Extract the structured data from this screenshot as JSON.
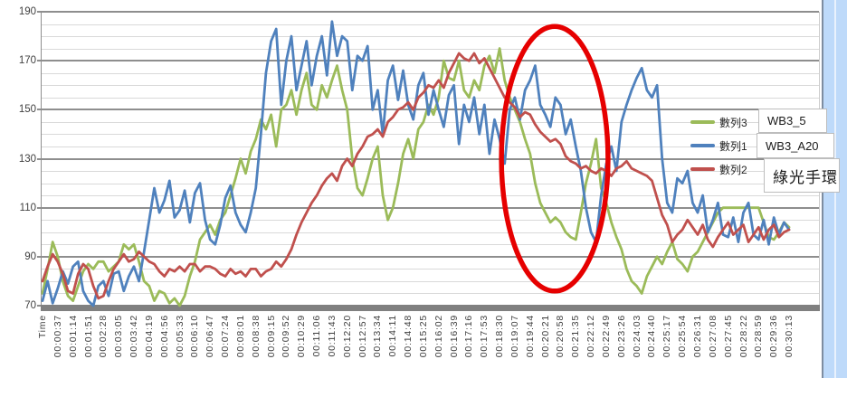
{
  "chart_data": {
    "type": "line",
    "x_axis_first_label": "Time",
    "x_labels": [
      "Time",
      "00:00:37",
      "00:01:14",
      "00:01:51",
      "00:02:28",
      "00:03:05",
      "00:03:42",
      "00:04:19",
      "00:04:56",
      "00:05:33",
      "00:06:10",
      "00:06:47",
      "00:07:24",
      "00:08:01",
      "00:08:38",
      "00:09:15",
      "00:09:52",
      "00:10:29",
      "00:11:06",
      "00:11:43",
      "00:12:20",
      "00:12:57",
      "00:13:34",
      "00:14:11",
      "00:14:48",
      "00:15:25",
      "00:16:02",
      "00:16:39",
      "00:17:16",
      "00:17:53",
      "00:18:30",
      "00:19:07",
      "00:19:44",
      "00:20:21",
      "00:20:58",
      "00:21:35",
      "00:22:12",
      "00:22:49",
      "00:23:26",
      "00:24:03",
      "00:24:40",
      "00:25:17",
      "00:25:54",
      "00:26:31",
      "00:27:08",
      "00:27:45",
      "00:28:22",
      "00:28:59",
      "00:29:36",
      "00:30:13"
    ],
    "ylim": [
      70,
      190
    ],
    "y_ticks": [
      70,
      90,
      110,
      130,
      150,
      170,
      190
    ],
    "y_minor_step": 5,
    "grid": "horizontal",
    "legend_position": "right-middle",
    "series": [
      {
        "name": "數列3",
        "device_label": "WB3_5",
        "color": "#9BBB59",
        "values": [
          75,
          85,
          96,
          90,
          80,
          74,
          72,
          78,
          84,
          87,
          85,
          88,
          88,
          84,
          86,
          88,
          95,
          93,
          95,
          88,
          80,
          78,
          72,
          76,
          75,
          71,
          73,
          70,
          74,
          82,
          88,
          97,
          100,
          103,
          99,
          105,
          108,
          115,
          122,
          130,
          124,
          133,
          138,
          146,
          142,
          148,
          135,
          150,
          152,
          158,
          148,
          158,
          165,
          152,
          150,
          160,
          155,
          162,
          168,
          158,
          150,
          130,
          118,
          115,
          122,
          130,
          135,
          115,
          105,
          110,
          120,
          132,
          138,
          130,
          142,
          145,
          152,
          148,
          155,
          170,
          163,
          162,
          170,
          158,
          155,
          162,
          158,
          168,
          172,
          165,
          175,
          162,
          155,
          150,
          145,
          138,
          132,
          120,
          112,
          108,
          104,
          106,
          104,
          100,
          98,
          97,
          108,
          120,
          128,
          138,
          118,
          112,
          104,
          98,
          93,
          85,
          80,
          78,
          75,
          82,
          86,
          90,
          87,
          92,
          96,
          89,
          87,
          84,
          90,
          92,
          96,
          100,
          104,
          108,
          110,
          110,
          110,
          110,
          110,
          110,
          110,
          110,
          104,
          98,
          97,
          100,
          104,
          102
        ]
      },
      {
        "name": "數列1",
        "device_label": "WB3_A20",
        "color": "#4F81BD",
        "values": [
          72,
          80,
          71,
          77,
          84,
          79,
          86,
          88,
          76,
          72,
          70,
          78,
          80,
          74,
          83,
          84,
          76,
          82,
          86,
          80,
          92,
          105,
          118,
          108,
          113,
          121,
          106,
          109,
          117,
          104,
          116,
          120,
          105,
          97,
          95,
          103,
          114,
          119,
          108,
          103,
          100,
          108,
          118,
          140,
          165,
          178,
          183,
          152,
          170,
          180,
          158,
          168,
          178,
          160,
          172,
          180,
          164,
          186,
          172,
          180,
          178,
          158,
          172,
          170,
          176,
          150,
          158,
          140,
          162,
          168,
          154,
          166,
          152,
          146,
          160,
          165,
          148,
          158,
          150,
          143,
          156,
          160,
          136,
          152,
          145,
          155,
          140,
          152,
          132,
          146,
          138,
          128,
          150,
          155,
          146,
          158,
          162,
          168,
          152,
          148,
          143,
          155,
          152,
          140,
          146,
          135,
          125,
          110,
          100,
          96,
          115,
          128,
          135,
          125,
          145,
          152,
          158,
          163,
          167,
          158,
          155,
          160,
          130,
          112,
          108,
          122,
          120,
          125,
          112,
          108,
          115,
          100,
          105,
          112,
          99,
          98,
          106,
          96,
          108,
          112,
          99,
          97,
          105,
          95,
          106,
          99,
          104,
          101
        ]
      },
      {
        "name": "數列2",
        "device_label": "綠光手環",
        "color": "#C0504D",
        "values": [
          80,
          86,
          91,
          88,
          83,
          76,
          75,
          83,
          87,
          85,
          78,
          73,
          74,
          80,
          85,
          88,
          91,
          88,
          89,
          92,
          90,
          88,
          87,
          84,
          82,
          85,
          84,
          86,
          84,
          87,
          87,
          84,
          86,
          86,
          85,
          83,
          82,
          85,
          83,
          84,
          82,
          85,
          85,
          82,
          84,
          85,
          88,
          86,
          89,
          93,
          99,
          104,
          108,
          112,
          115,
          119,
          122,
          124,
          121,
          127,
          130,
          127,
          132,
          135,
          139,
          140,
          142,
          139,
          145,
          147,
          150,
          151,
          153,
          150,
          155,
          157,
          160,
          159,
          162,
          159,
          165,
          169,
          173,
          171,
          170,
          173,
          169,
          171,
          167,
          163,
          159,
          155,
          153,
          151,
          147,
          149,
          148,
          144,
          141,
          139,
          137,
          138,
          136,
          131,
          129,
          128,
          126,
          127,
          125,
          124,
          126,
          125,
          123,
          126,
          127,
          129,
          126,
          125,
          124,
          123,
          121,
          114,
          107,
          103,
          96,
          99,
          101,
          105,
          102,
          99,
          103,
          97,
          94,
          98,
          101,
          104,
          99,
          101,
          103,
          96,
          99,
          102,
          97,
          101,
          103,
          98,
          100,
          101
        ]
      }
    ],
    "legend_items": [
      "數列3",
      "數列1",
      "數列2"
    ],
    "annotations": {
      "highlight_ellipse": {
        "shape": "ellipse",
        "color": "#e60000",
        "x_range": [
          "00:18:30",
          "00:22:49"
        ],
        "y_range": [
          76,
          184
        ]
      },
      "callouts": [
        "WB3_5",
        "WB3_A20",
        "綠光手環"
      ]
    },
    "ui_colors": {
      "major_gridline": "#8e8e8e",
      "minor_gridline": "#d9d9d9",
      "axis_bar": "#808080",
      "sheet_selection_blue": "#bedafa",
      "axis_text": "#3f3f3f"
    }
  }
}
